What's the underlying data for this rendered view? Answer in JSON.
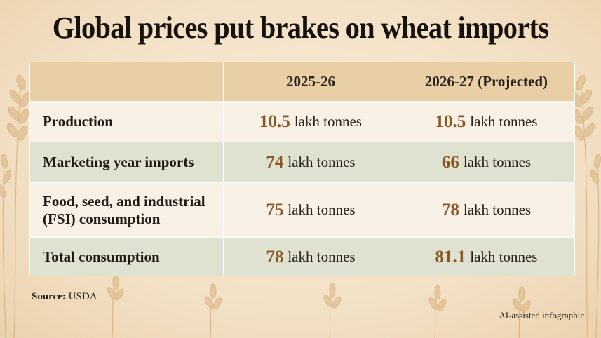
{
  "title": "Global prices put brakes on wheat imports",
  "table": {
    "headers": [
      "",
      "2025-26",
      "2026-27 (Projected)"
    ],
    "rows": [
      {
        "label": "Production",
        "v1": "10.5",
        "u1": "lakh tonnes",
        "v2": "10.5",
        "u2": "lakh tonnes"
      },
      {
        "label": "Marketing year imports",
        "v1": "74",
        "u1": "lakh tonnes",
        "v2": "66",
        "u2": "lakh tonnes"
      },
      {
        "label_line1": "Food, seed, and industrial",
        "label_line2": "(FSI) consumption",
        "v1": "75",
        "u1": "lakh tonnes",
        "v2": "78",
        "u2": "lakh tonnes"
      },
      {
        "label": "Total consumption",
        "v1": "78",
        "u1": "lakh tonnes",
        "v2": "81.1",
        "u2": "lakh tonnes"
      }
    ]
  },
  "source": {
    "label": "Source:",
    "value": "USDA"
  },
  "credit": "AI-assisted infographic",
  "colors": {
    "accent_number": "#8b5520",
    "header_bg": "#e9cfa6",
    "row_light": "#f9f1e6",
    "row_sage": "#dfe2d0"
  },
  "decor": [
    "wheat-stalk-icon"
  ]
}
